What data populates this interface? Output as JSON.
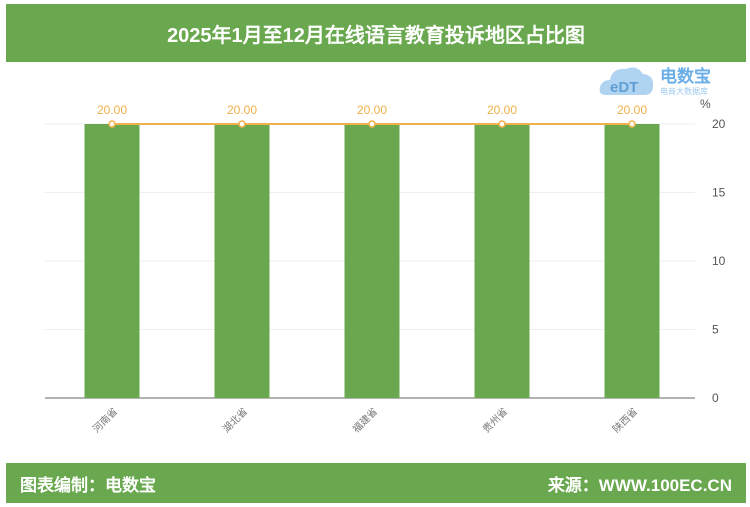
{
  "title": "2025年1月至12月在线语言教育投诉地区占比图",
  "footer": {
    "left": "图表编制：电数宝",
    "right": "来源：WWW.100EC.CN"
  },
  "logo": {
    "text": "电数宝",
    "sub": "电商大数据库",
    "mark": "eDT"
  },
  "colors": {
    "bar": "#6aa84f",
    "line": "#f0b04a",
    "header": "#6aa84f"
  },
  "chart_data": {
    "type": "bar",
    "categories": [
      "河南省",
      "湖北省",
      "福建省",
      "贵州省",
      "陕西省"
    ],
    "series": [
      {
        "type": "bar",
        "values": [
          20,
          20,
          20,
          20,
          20
        ]
      },
      {
        "type": "line",
        "values": [
          20,
          20,
          20,
          20,
          20
        ],
        "labels": [
          "20.00",
          "20.00",
          "20.00",
          "20.00",
          "20.00"
        ]
      }
    ],
    "yaxis": {
      "position": "right",
      "unit": "%",
      "ticks": [
        0,
        5,
        10,
        15,
        20
      ],
      "ylim": [
        0,
        20
      ]
    },
    "grid": true
  }
}
